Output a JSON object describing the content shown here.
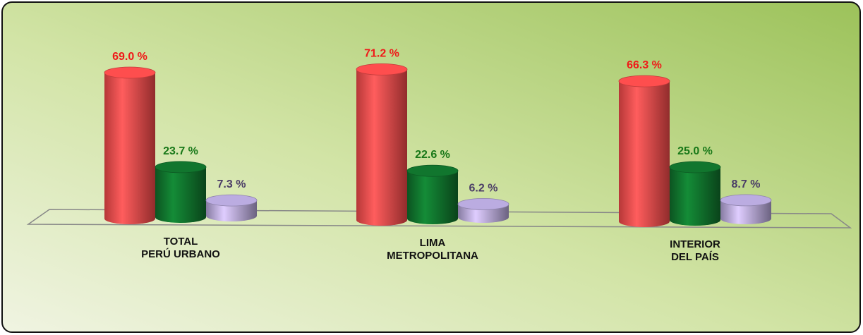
{
  "chart_data": {
    "type": "bar3d",
    "categories": [
      "TOTAL\nPERÚ URBANO",
      "LIMA\nMETROPOLITANA",
      "INTERIOR\nDEL PAÍS"
    ],
    "series": [
      {
        "color": "#f24a4a",
        "label_color": "#f01818",
        "values": [
          69.0,
          71.2,
          66.3
        ],
        "value_labels": [
          "69.0 %",
          "71.2 %",
          "66.3 %"
        ]
      },
      {
        "color": "#10702c",
        "label_color": "#187818",
        "values": [
          23.7,
          22.6,
          25.0
        ],
        "value_labels": [
          "23.7 %",
          "22.6 %",
          "25.0 %"
        ]
      },
      {
        "color": "#b2a4d6",
        "label_color": "#4a3c66",
        "values": [
          7.3,
          6.2,
          8.7
        ],
        "value_labels": [
          "7.3 %",
          "6.2 %",
          "8.7 %"
        ]
      }
    ]
  }
}
